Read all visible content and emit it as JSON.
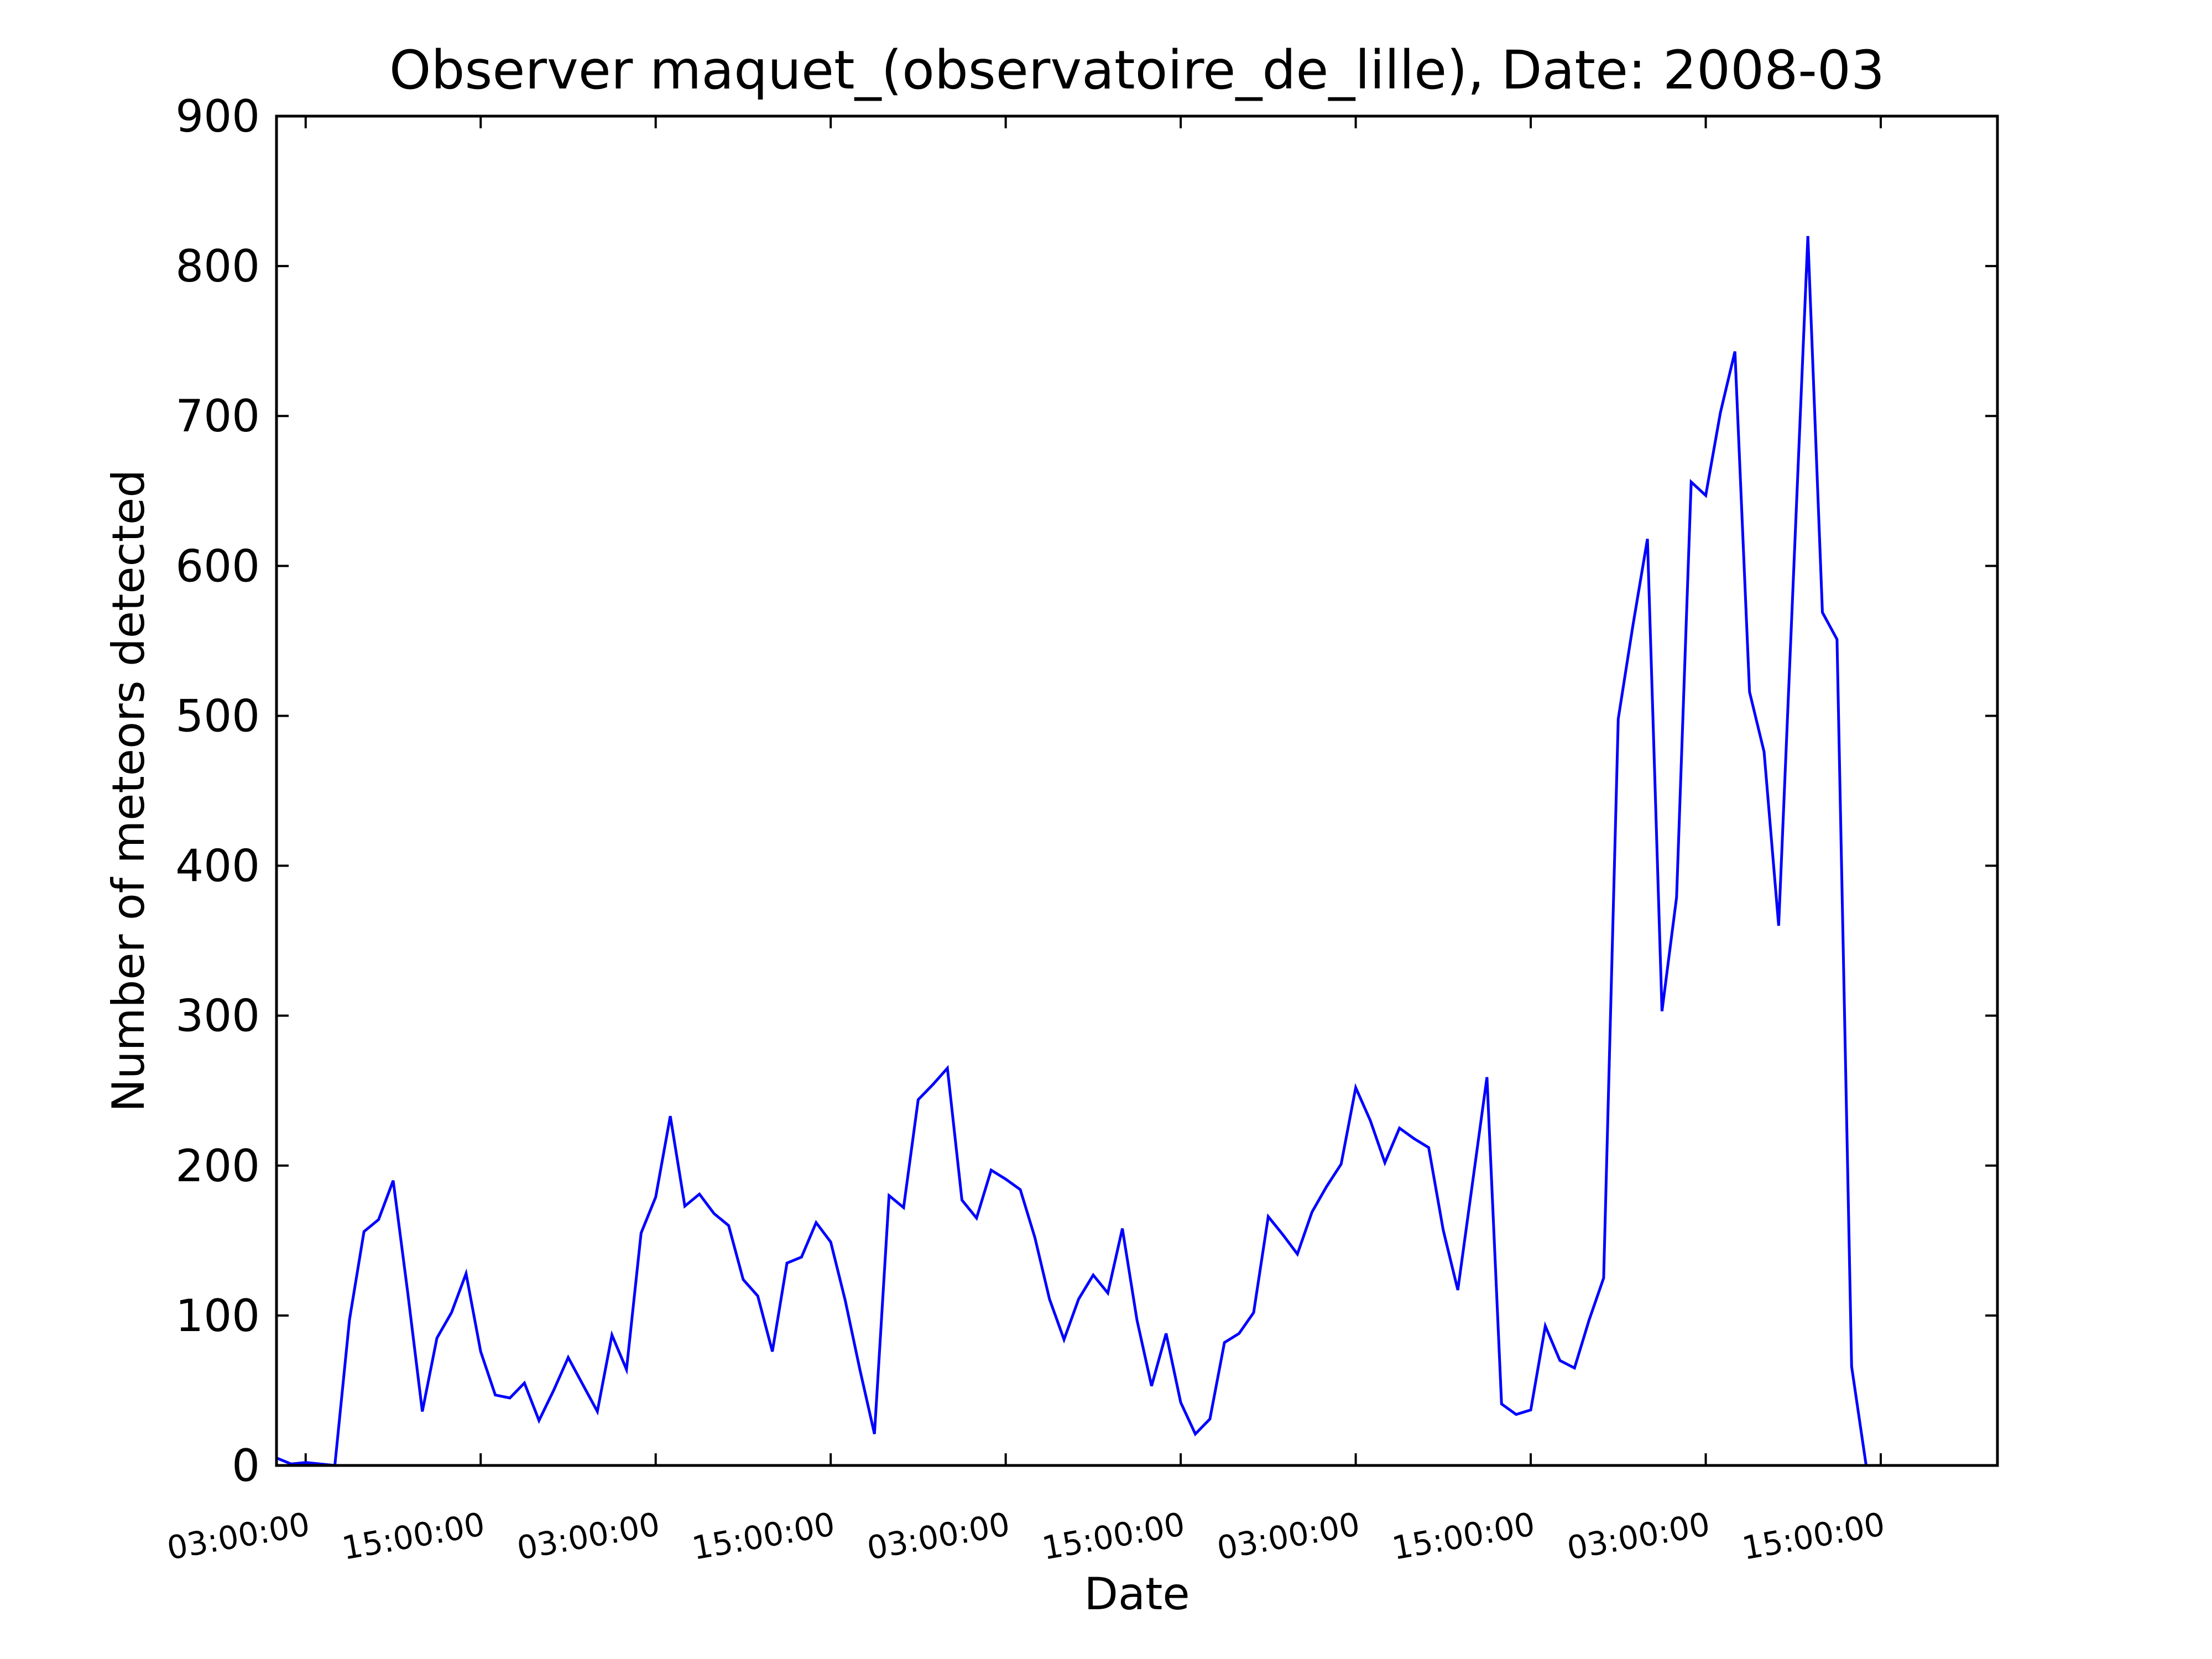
{
  "chart_data": {
    "type": "line",
    "title": "Observer maquet_(observatoire_de_lille), Date: 2008-03",
    "xlabel": "Date",
    "ylabel": "Number of meteors detected",
    "ylim": [
      0,
      900
    ],
    "xlim": [
      0,
      118
    ],
    "y_ticks": [
      "0",
      "100",
      "200",
      "300",
      "400",
      "500",
      "600",
      "700",
      "800",
      "900"
    ],
    "x_ticks": [
      {
        "label": "03:00:00",
        "at": 2
      },
      {
        "label": "15:00:00",
        "at": 14
      },
      {
        "label": "03:00:00",
        "at": 26
      },
      {
        "label": "15:00:00",
        "at": 38
      },
      {
        "label": "03:00:00",
        "at": 50
      },
      {
        "label": "15:00:00",
        "at": 62
      },
      {
        "label": "03:00:00",
        "at": 74
      },
      {
        "label": "15:00:00",
        "at": 86
      },
      {
        "label": "03:00:00",
        "at": 98
      },
      {
        "label": "15:00:00",
        "at": 110
      }
    ],
    "x_tick_unit": "hour index (1 step = 1 hour)",
    "line_color": "#0000ff",
    "grid": false,
    "series": [
      {
        "x": [
          0,
          1,
          2,
          3,
          4,
          5,
          6,
          7,
          8,
          9,
          10,
          11,
          12,
          13,
          14,
          15,
          16,
          17,
          18,
          19,
          20,
          21,
          22,
          23,
          24,
          25,
          26,
          27,
          28,
          29,
          30,
          31,
          32,
          33,
          34,
          35,
          36,
          37,
          38,
          39,
          40,
          41,
          42,
          43,
          44,
          45,
          46,
          47,
          48,
          49,
          50,
          51,
          52,
          53,
          54,
          55,
          56,
          57,
          58,
          59,
          60,
          61,
          62,
          63,
          64,
          65,
          66,
          67,
          68,
          69,
          70,
          71,
          72,
          73,
          74,
          75,
          76,
          77,
          78,
          79,
          80,
          81,
          82,
          83,
          84,
          85,
          86,
          87,
          88,
          89,
          90,
          91,
          92,
          93,
          94,
          95,
          96,
          97,
          98,
          99,
          100,
          101,
          102,
          103,
          104,
          105,
          106,
          107,
          108,
          109,
          110,
          111,
          112,
          113,
          114,
          115,
          116,
          117,
          118
        ],
        "values": [
          5,
          1,
          2,
          1,
          0,
          97,
          156,
          164,
          190,
          115,
          36,
          85,
          102,
          128,
          76,
          47,
          45,
          55,
          30,
          50,
          72,
          54,
          36,
          87,
          64,
          155,
          179,
          233,
          173,
          181,
          168,
          160,
          124,
          113,
          76,
          135,
          139,
          162,
          149,
          110,
          64,
          21,
          180,
          172,
          244,
          254,
          265,
          177,
          165,
          197,
          191,
          184,
          152,
          111,
          84,
          111,
          127,
          115,
          158,
          97,
          53,
          88,
          42,
          21,
          31,
          82,
          88,
          102,
          166,
          154,
          141,
          169,
          186,
          201,
          252,
          230,
          202,
          225,
          218,
          212,
          157,
          117,
          188,
          259,
          41,
          34,
          37,
          93,
          70,
          65,
          97,
          125,
          498,
          560,
          618,
          303,
          379,
          656,
          647,
          702,
          743,
          516,
          476,
          360,
          590,
          820,
          569,
          551,
          66,
          0,
          0,
          0,
          0,
          0,
          0,
          0,
          0,
          0,
          0
        ]
      }
    ]
  }
}
